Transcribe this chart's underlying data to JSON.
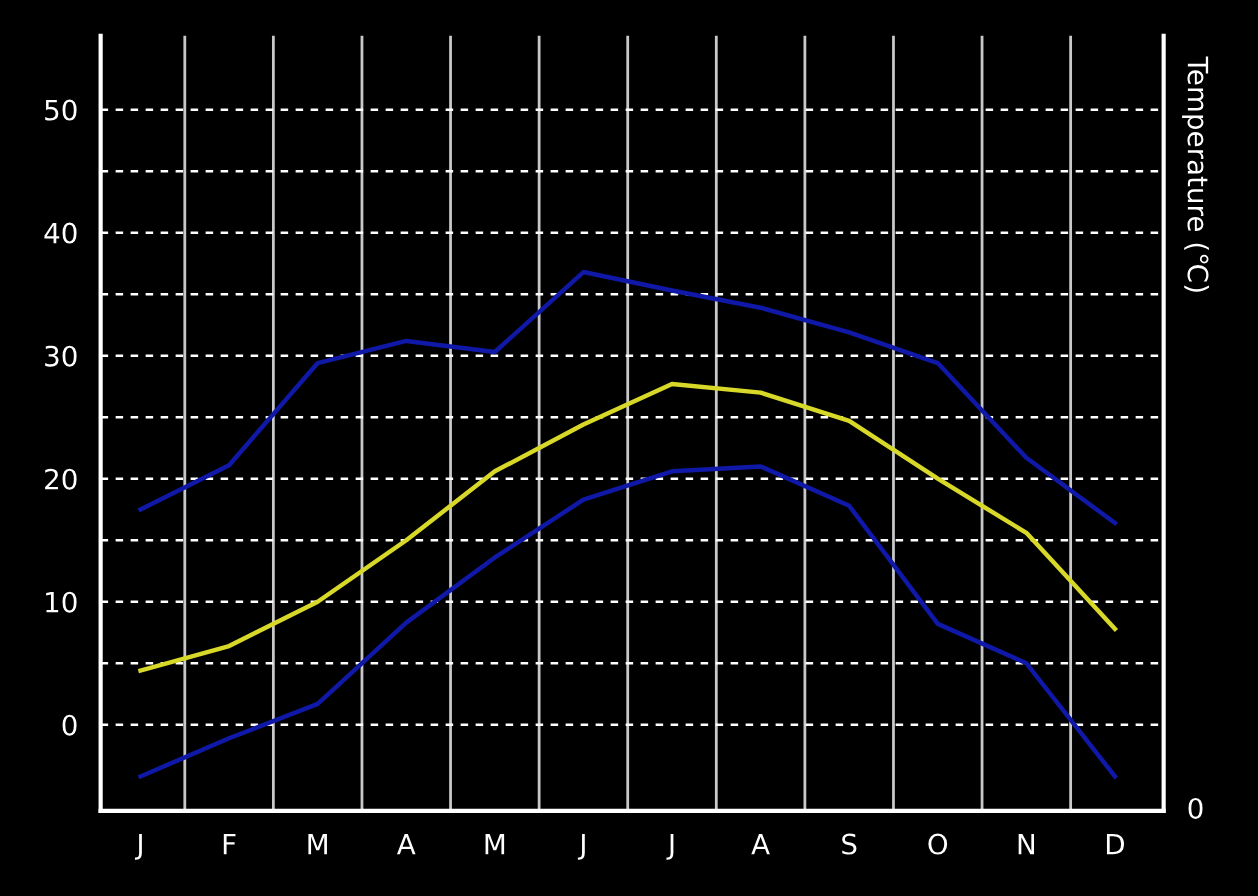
{
  "chart_data": {
    "type": "line",
    "categories": [
      "J",
      "F",
      "M",
      "A",
      "M",
      "J",
      "J",
      "A",
      "S",
      "O",
      "N",
      "D"
    ],
    "series": [
      {
        "color": "#1018a8",
        "values": [
          17.5,
          21.1,
          29.4,
          31.2,
          30.3,
          36.8,
          35.3,
          33.9,
          31.9,
          29.4,
          21.7,
          16.4
        ]
      },
      {
        "color": "#d8d828",
        "values": [
          4.4,
          6.4,
          10.0,
          15.0,
          20.6,
          24.4,
          27.7,
          27.0,
          24.7,
          20.0,
          15.6,
          7.8
        ]
      },
      {
        "color": "#1018a8",
        "values": [
          -4.2,
          -1.1,
          1.7,
          8.3,
          13.6,
          18.3,
          20.6,
          21.0,
          17.8,
          8.2,
          5.0,
          -4.2
        ]
      }
    ],
    "ylim": [
      -7,
      56
    ],
    "yticks": [
      0,
      {
        "value": 5,
        "label": null
      },
      10,
      {
        "value": 15,
        "label": null
      },
      20,
      {
        "value": 25,
        "label": null
      },
      30,
      {
        "value": 35,
        "label": null
      },
      40,
      {
        "value": 45,
        "label": null
      },
      50
    ],
    "y2label": "Temperature (℃)",
    "annotations": [
      "0"
    ],
    "grid": true,
    "legend": false,
    "marker": "none",
    "line_style": "solid"
  }
}
